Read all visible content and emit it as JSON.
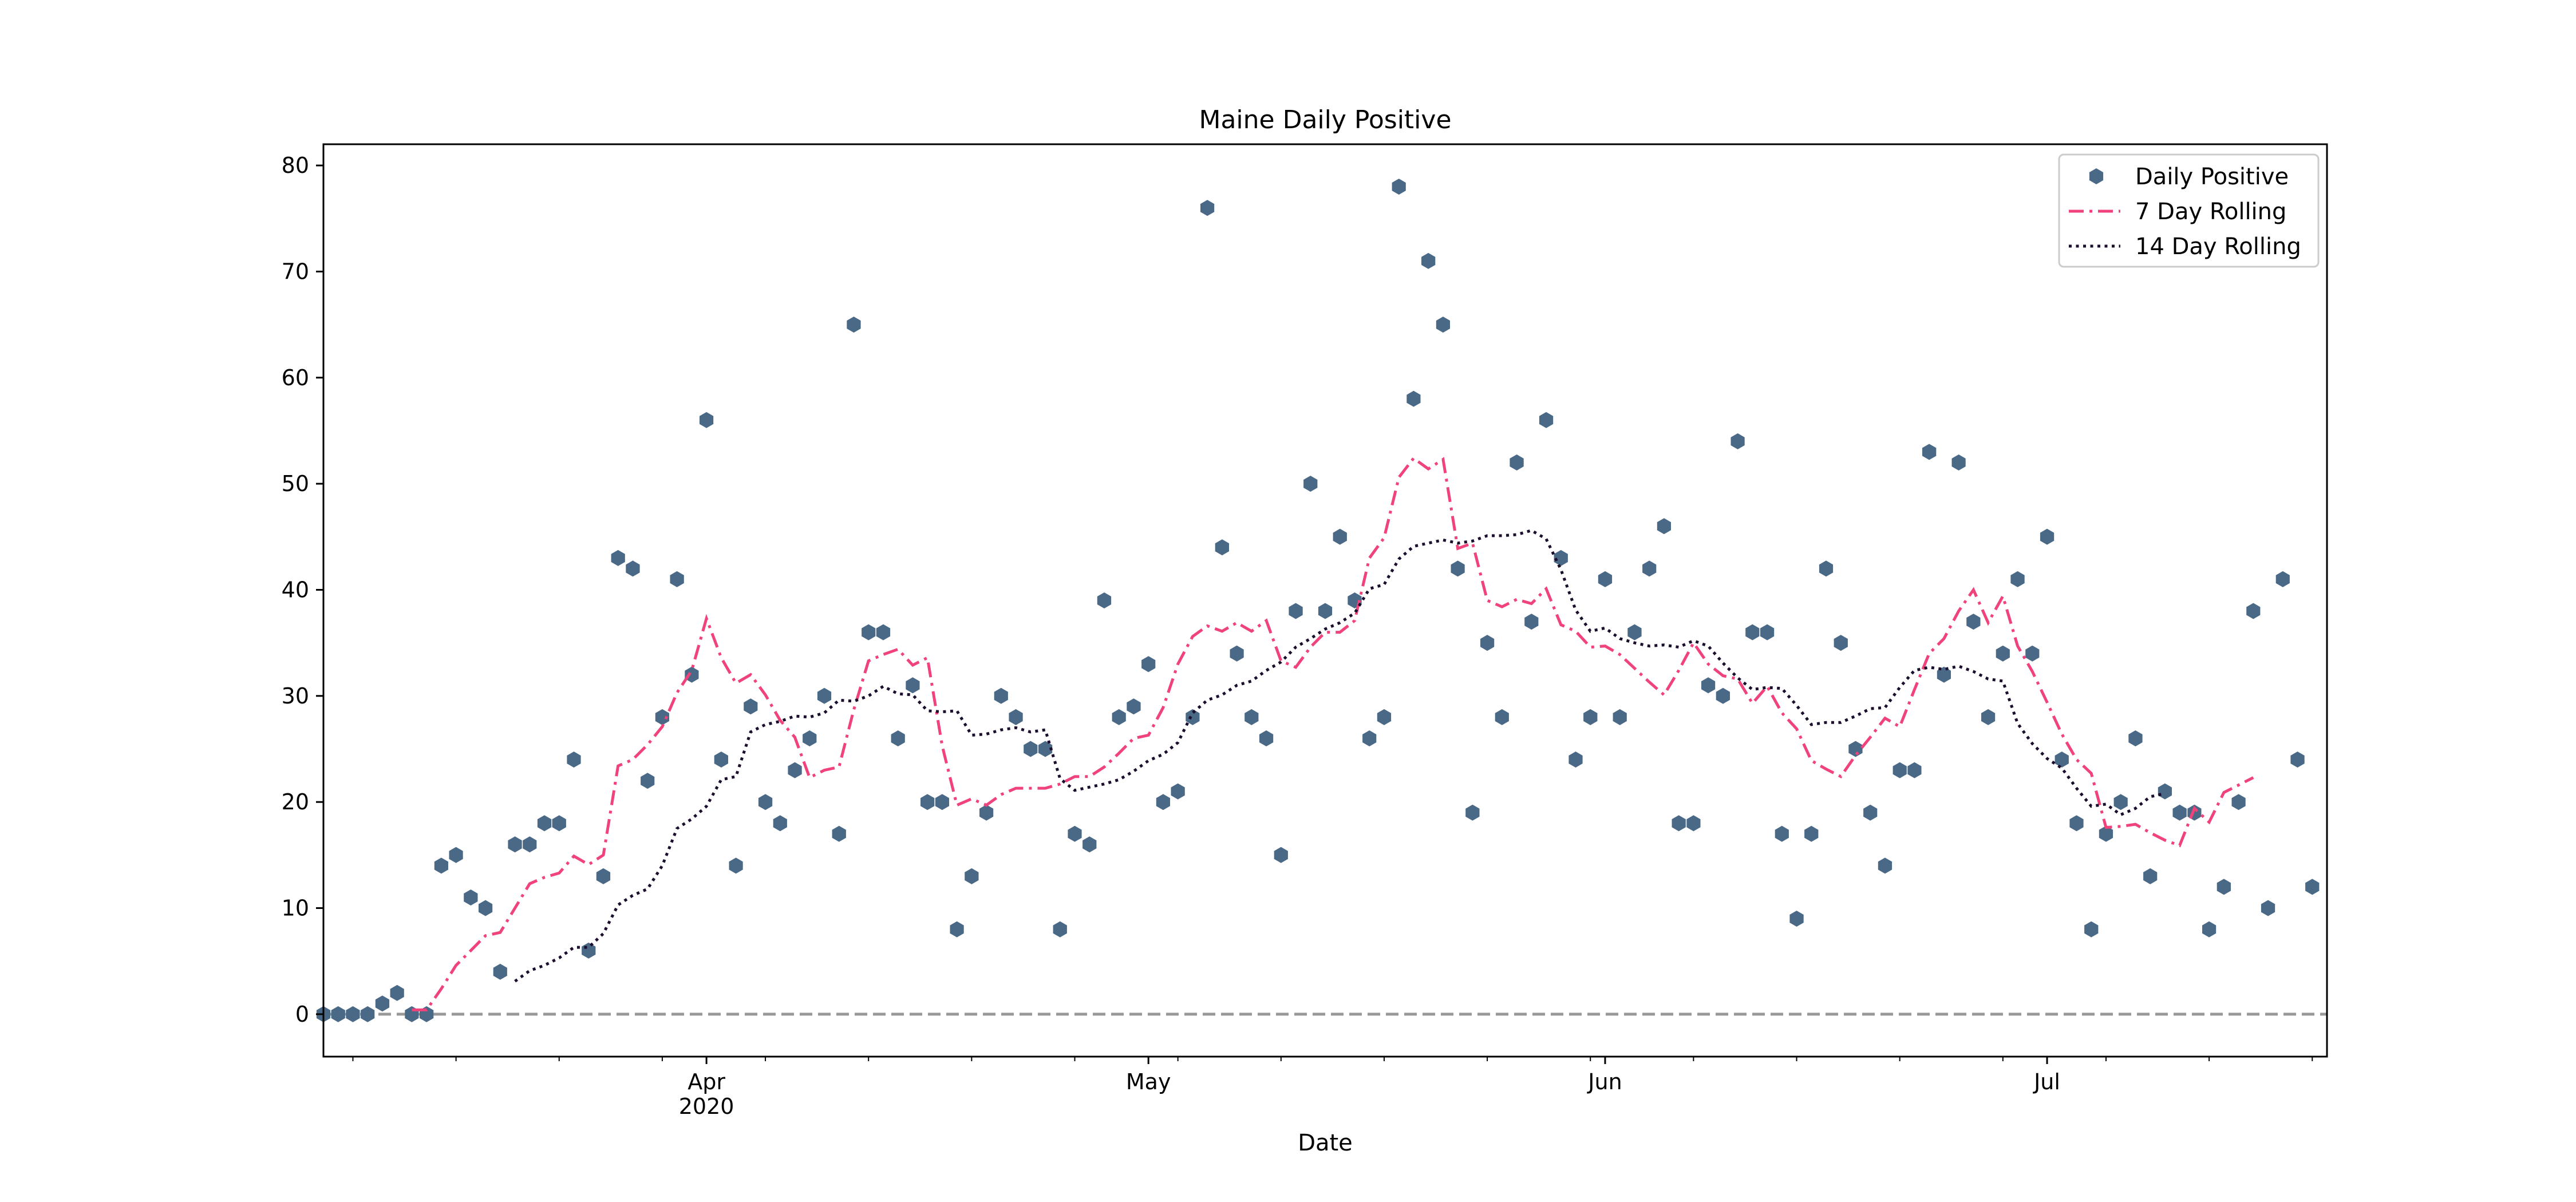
{
  "chart_data": {
    "type": "line",
    "title": "Maine Daily Positive",
    "xlabel": "Date",
    "ylabel": "",
    "x_start": "2020-03-06",
    "x_range": [
      "2020-03-06",
      "2020-07-20"
    ],
    "ylim": [
      -4,
      82
    ],
    "yticks": [
      0,
      10,
      20,
      30,
      40,
      50,
      60,
      70,
      80
    ],
    "xticks_major": [
      {
        "date": "2020-04-01",
        "label": "Apr",
        "sublabel": "2020"
      },
      {
        "date": "2020-05-01",
        "label": "May",
        "sublabel": ""
      },
      {
        "date": "2020-06-01",
        "label": "Jun",
        "sublabel": ""
      },
      {
        "date": "2020-07-01",
        "label": "Jul",
        "sublabel": ""
      }
    ],
    "grid": false,
    "legend_position": "top-right",
    "zero_line": {
      "y": 0,
      "style": "dashed",
      "color": "#999999"
    },
    "series": [
      {
        "name": "Daily Positive",
        "kind": "scatter",
        "color": "#4a6987",
        "values": [
          0,
          0,
          0,
          0,
          1,
          2,
          0,
          0,
          14,
          15,
          11,
          10,
          4,
          16,
          16,
          18,
          18,
          24,
          6,
          13,
          43,
          42,
          22,
          28,
          41,
          32,
          56,
          24,
          14,
          29,
          20,
          18,
          23,
          26,
          30,
          17,
          65,
          36,
          36,
          26,
          31,
          20,
          20,
          8,
          13,
          19,
          30,
          28,
          25,
          25,
          8,
          17,
          16,
          39,
          28,
          29,
          33,
          20,
          21,
          28,
          76,
          44,
          34,
          28,
          26,
          15,
          38,
          50,
          38,
          45,
          39,
          26,
          28,
          78,
          58,
          71,
          65,
          42,
          19,
          35,
          28,
          52,
          37,
          56,
          43,
          24,
          28,
          41,
          28,
          36,
          42,
          46,
          18,
          18,
          31,
          30,
          54,
          36,
          36,
          17,
          9,
          17,
          42,
          35,
          25,
          19,
          14,
          23,
          23,
          53,
          32,
          52,
          37,
          28,
          34,
          41,
          34,
          45,
          24,
          18,
          8,
          17,
          20,
          26,
          13,
          21,
          19,
          19,
          8,
          12,
          20,
          38,
          10,
          41,
          24,
          12
        ]
      },
      {
        "name": "7 Day Rolling",
        "kind": "line",
        "color": "#f0437b",
        "dash": "dashdot",
        "values": [
          null,
          null,
          null,
          null,
          null,
          null,
          0.4,
          0.4,
          2.4,
          4.6,
          6,
          7.4,
          7.7,
          10,
          12.3,
          12.9,
          13.3,
          14.9,
          14.1,
          15,
          23.4,
          24,
          25.4,
          27.1,
          30.3,
          32.4,
          37.3,
          33.6,
          31.2,
          32,
          30.1,
          27.7,
          26.1,
          22.3,
          23,
          23.3,
          28.7,
          33.3,
          33.9,
          34.4,
          32.9,
          33.6,
          25.3,
          19.7,
          20.3,
          19.7,
          20.7,
          21.3,
          21.3,
          21.3,
          21.7,
          22.4,
          22.4,
          23.3,
          24.6,
          26,
          26.3,
          28.9,
          33,
          35.6,
          36.6,
          36.1,
          36.9,
          36.1,
          37.1,
          33.3,
          32.7,
          34.6,
          36,
          36,
          37.1,
          43,
          44.9,
          50.6,
          52.4,
          51.4,
          52.3,
          43.9,
          44.4,
          39,
          38.4,
          39.1,
          38.7,
          40.1,
          36.7,
          36.1,
          34.6,
          34.7,
          33.9,
          32.6,
          31.3,
          30.1,
          32.4,
          35,
          33,
          31.9,
          31.6,
          29.3,
          30.9,
          28.4,
          26.9,
          23.9,
          23.1,
          22.4,
          24.4,
          26.1,
          27.9,
          27.1,
          30.6,
          34,
          35.4,
          38,
          40,
          36.9,
          39.4,
          34.7,
          32.3,
          29.4,
          26.4,
          24,
          22.7,
          17.6,
          17.7,
          17.9,
          17.1,
          16.4,
          15.9,
          19.4,
          18.1,
          20.9,
          21.6,
          22.3
        ]
      },
      {
        "name": "14 Day Rolling",
        "kind": "line",
        "color": "#1c0f2e",
        "dash": "dotted",
        "values": [
          null,
          null,
          null,
          null,
          null,
          null,
          null,
          null,
          null,
          null,
          null,
          null,
          null,
          3.1,
          4.1,
          4.6,
          5.3,
          6.3,
          6.3,
          7.6,
          10.3,
          11.2,
          11.8,
          14,
          17.5,
          18.4,
          19.6,
          22.1,
          22.4,
          26.6,
          27.3,
          27.6,
          28.1,
          28,
          28.4,
          29.6,
          29.5,
          30,
          30.9,
          30.2,
          30.1,
          28.6,
          28.5,
          28.6,
          26.3,
          26.4,
          26.8,
          27,
          26.6,
          26.8,
          22.2,
          21.1,
          21.4,
          21.7,
          22.1,
          22.9,
          23.9,
          24.5,
          25.6,
          28.4,
          29.6,
          30.1,
          31,
          31.4,
          32.4,
          33.2,
          34.6,
          35.4,
          36.3,
          36.9,
          37.8,
          40.1,
          40.5,
          42.9,
          44.1,
          44.4,
          44.7,
          44.4,
          44.6,
          45.1,
          45.1,
          45.2,
          45.6,
          44.8,
          41.9,
          38.1,
          36.1,
          36.4,
          35.4,
          35,
          34.7,
          34.8,
          34.6,
          35.2,
          34.7,
          33.1,
          31.7,
          30.6,
          30.8,
          30.7,
          29.1,
          27.3,
          27.5,
          27.5,
          28.1,
          28.8,
          28.9,
          30.8,
          32.4,
          32.7,
          32.5,
          32.8,
          32.3,
          31.6,
          31.4,
          27.4,
          25.5,
          24.1,
          23.2,
          21.3,
          19.6,
          19.8,
          18.8,
          19.4,
          20.5,
          20.8
        ]
      }
    ]
  }
}
